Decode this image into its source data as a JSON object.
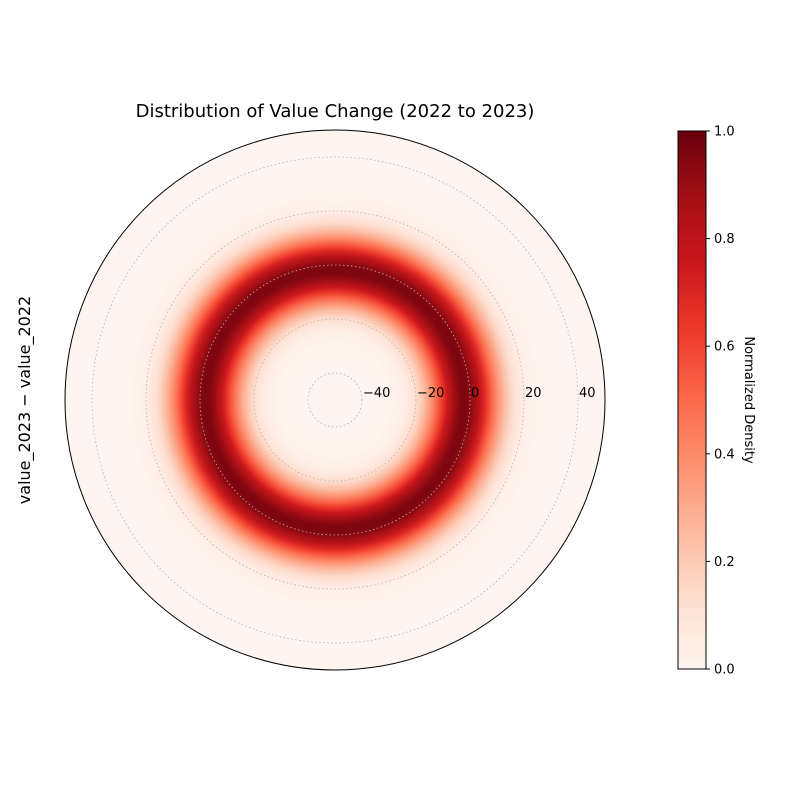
{
  "chart_data": {
    "type": "heatmap",
    "projection": "polar",
    "title": "Distribution of Value Change (2022 to 2023)",
    "ylabel": "value_2023 − value_2022",
    "rlim": [
      -50,
      50
    ],
    "r_ticks": [
      -40,
      -20,
      0,
      20,
      40
    ],
    "r_tick_labels": [
      "−40",
      "−20",
      "0",
      "20",
      "40"
    ],
    "density_profile": {
      "description_free_values": true,
      "peak_r": -2,
      "sigma": 9,
      "max_density": 1.0,
      "shape": "gaussian ring"
    },
    "grid": true,
    "colormap": "Reds",
    "colorbar": {
      "label": "Normalized Density",
      "ticks": [
        0.0,
        0.2,
        0.4,
        0.6,
        0.8,
        1.0
      ],
      "tick_labels": [
        "0.0",
        "0.2",
        "0.4",
        "0.6",
        "0.8",
        "1.0"
      ],
      "range": [
        0,
        1
      ]
    },
    "colors": [
      "#fff5f0",
      "#fee0d2",
      "#fcbba1",
      "#fc9272",
      "#fb6a4a",
      "#ef3b2c",
      "#cb181d",
      "#a50f15",
      "#67000d"
    ]
  }
}
